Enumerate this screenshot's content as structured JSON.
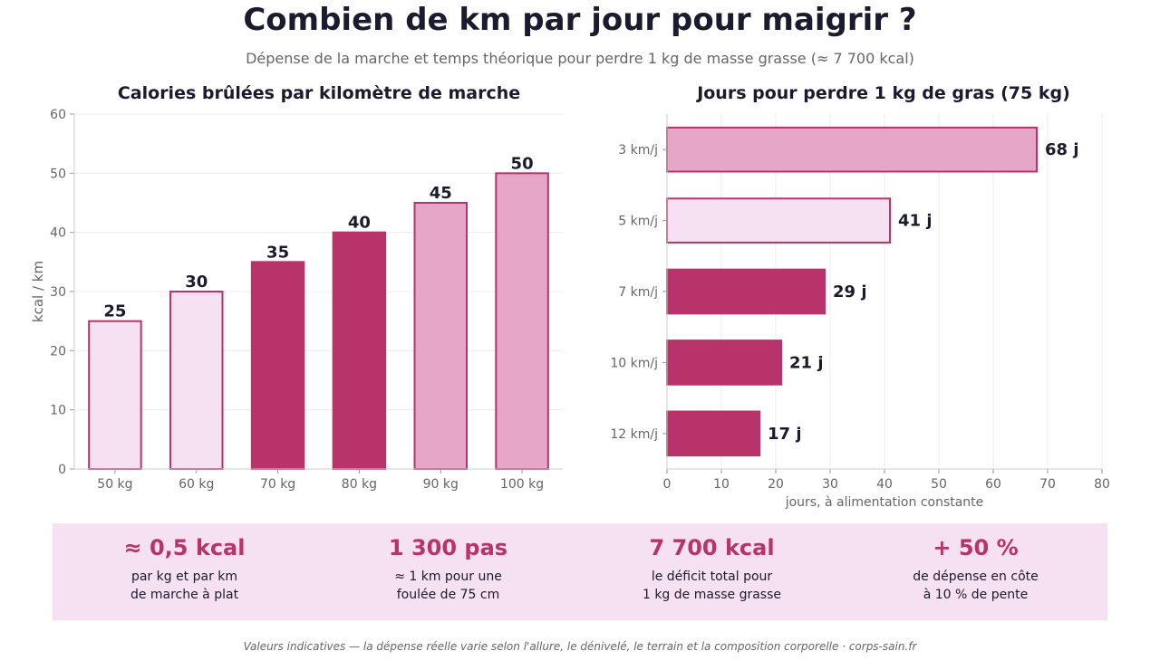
{
  "title": "Combien de km par jour pour maigrir ?",
  "subtitle": "Dépense de la marche et temps théorique pour perdre 1 kg de masse grasse (≈ 7 700 kcal)",
  "colors": {
    "light": "#f5e1f2",
    "medium": "#e6a6c7",
    "dark": "#b8336a",
    "stroke": "#b8336a",
    "text": "#1b1a2e",
    "muted": "#666666",
    "grid": "#ececec"
  },
  "chart_data": [
    {
      "type": "bar",
      "title": "Calories brûlées par kilomètre de marche",
      "xlabel": "",
      "ylabel": "kcal / km",
      "categories": [
        "50 kg",
        "60 kg",
        "70 kg",
        "80 kg",
        "90 kg",
        "100 kg"
      ],
      "values": [
        25,
        30,
        35,
        40,
        45,
        50
      ],
      "value_labels": [
        "25",
        "30",
        "35",
        "40",
        "45",
        "50"
      ],
      "bar_colors": [
        "light",
        "light",
        "dark",
        "dark",
        "medium",
        "medium"
      ],
      "ylim": [
        0,
        60
      ],
      "yticks": [
        "0",
        "10",
        "20",
        "30",
        "40",
        "50",
        "60"
      ],
      "grid": true
    },
    {
      "type": "bar",
      "orientation": "horizontal",
      "title": "Jours pour perdre 1 kg de gras (75 kg)",
      "xlabel": "jours, à alimentation constante",
      "ylabel": "",
      "categories": [
        "3 km/j",
        "5 km/j",
        "7 km/j",
        "10 km/j",
        "12 km/j"
      ],
      "values": [
        68,
        41,
        29,
        21,
        17
      ],
      "value_labels": [
        "68 j",
        "41 j",
        "29 j",
        "21 j",
        "17 j"
      ],
      "bar_colors": [
        "medium",
        "light",
        "dark",
        "dark",
        "dark"
      ],
      "xlim": [
        0,
        80
      ],
      "xticks": [
        "0",
        "10",
        "20",
        "30",
        "40",
        "50",
        "60",
        "70",
        "80"
      ],
      "grid": true
    }
  ],
  "stats": [
    {
      "value": "≈ 0,5 kcal",
      "line1": "par kg et par km",
      "line2": "de marche à plat"
    },
    {
      "value": "1 300 pas",
      "line1": "≈ 1 km pour une",
      "line2": "foulée de 75 cm"
    },
    {
      "value": "7 700 kcal",
      "line1": "le déficit total pour",
      "line2": "1 kg de masse grasse"
    },
    {
      "value": "+ 50 %",
      "line1": "de dépense en côte",
      "line2": "à 10 % de pente"
    }
  ],
  "footer": "Valeurs indicatives — la dépense réelle varie selon l'allure, le dénivelé, le terrain et la composition corporelle · corps-sain.fr"
}
